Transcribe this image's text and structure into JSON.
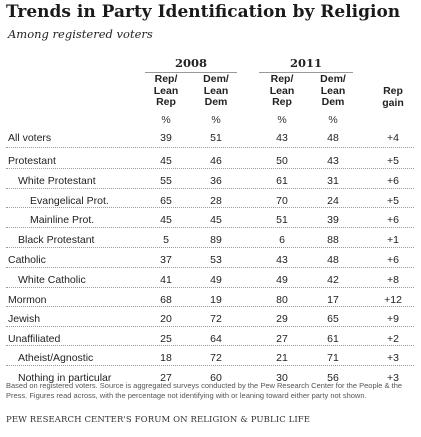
{
  "title": "Trends in Party Identification by Religion",
  "subtitle": "Among registered voters",
  "years": [
    "2008",
    "2011"
  ],
  "column_headers": {
    "rep_2008": [
      "Rep/",
      "Lean",
      "Rep"
    ],
    "dem_2008": [
      "Dem/",
      "Lean",
      "Dem"
    ],
    "rep_2011": [
      "Rep/",
      "Lean",
      "Rep"
    ],
    "dem_2011": [
      "Dem/",
      "Lean",
      "Dem"
    ],
    "gain": [
      "Rep",
      "gain"
    ]
  },
  "percent_sign": "%",
  "rows": [
    {
      "label": "All voters",
      "rep2008": "39",
      "dem2008": "51",
      "rep2011": "43",
      "dem2011": "48",
      "gain": "+4"
    },
    {
      "label": "Protestant",
      "rep2008": "45",
      "dem2008": "46",
      "rep2011": "50",
      "dem2011": "43",
      "gain": "+5"
    },
    {
      "label": "White Protestant",
      "rep2008": "55",
      "dem2008": "36",
      "rep2011": "61",
      "dem2011": "31",
      "gain": "+6"
    },
    {
      "label": "Evangelical Prot.",
      "rep2008": "65",
      "dem2008": "28",
      "rep2011": "70",
      "dem2011": "24",
      "gain": "+5"
    },
    {
      "label": "Mainline  Prot.",
      "rep2008": "45",
      "dem2008": "45",
      "rep2011": "51",
      "dem2011": "39",
      "gain": "+6"
    },
    {
      "label": "Black Protestant",
      "rep2008": "5",
      "dem2008": "89",
      "rep2011": "6",
      "dem2011": "88",
      "gain": "+1"
    },
    {
      "label": "Catholic",
      "rep2008": "37",
      "dem2008": "53",
      "rep2011": "43",
      "dem2011": "48",
      "gain": "+6"
    },
    {
      "label": "White Catholic",
      "rep2008": "41",
      "dem2008": "49",
      "rep2011": "49",
      "dem2011": "42",
      "gain": "+8"
    },
    {
      "label": "Mormon",
      "rep2008": "68",
      "dem2008": "19",
      "rep2011": "80",
      "dem2011": "17",
      "gain": "+12"
    },
    {
      "label": "Jewish",
      "rep2008": "20",
      "dem2008": "72",
      "rep2011": "29",
      "dem2011": "65",
      "gain": "+9"
    },
    {
      "label": "Unaffiliated",
      "rep2008": "25",
      "dem2008": "64",
      "rep2011": "27",
      "dem2011": "61",
      "gain": "+2"
    },
    {
      "label": "Atheist/Agnostic",
      "rep2008": "18",
      "dem2008": "72",
      "rep2011": "21",
      "dem2011": "71",
      "gain": "+3"
    },
    {
      "label": "Nothing in particular",
      "rep2008": "27",
      "dem2008": "60",
      "rep2011": "30",
      "dem2011": "56",
      "gain": "+3"
    }
  ],
  "note": "Based on registered voters. Source is aggregated surveys conducted by the Pew Research Center for the People & the Press. Figures read across, with the percentage not identifying with or leaning toward either party not shown.",
  "source": "PEW RESEARCH CENTER'S FORUM ON RELIGION & PUBLIC LIFE"
}
